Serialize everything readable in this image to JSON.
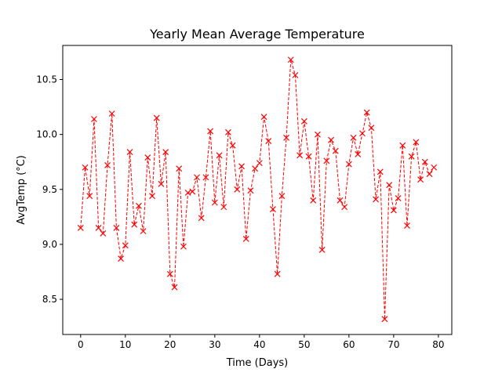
{
  "chart_data": {
    "type": "line",
    "title": "Yearly Mean Average Temperature",
    "xlabel": "Time (Days)",
    "ylabel": "AvgTemp (°C)",
    "xlim": [
      -4,
      83
    ],
    "ylim": [
      8.18,
      10.81
    ],
    "xticks": [
      0,
      10,
      20,
      30,
      40,
      50,
      60,
      70,
      80
    ],
    "yticks": [
      8.5,
      9.0,
      9.5,
      10.0,
      10.5
    ],
    "xtick_labels": [
      "0",
      "10",
      "20",
      "30",
      "40",
      "50",
      "60",
      "70",
      "80"
    ],
    "ytick_labels": [
      "8.5",
      "9.0",
      "9.5",
      "10.0",
      "10.5"
    ],
    "grid": false,
    "legend": "none",
    "series": [
      {
        "color": "#ff0000",
        "line_style": "dashed",
        "marker": "x",
        "x": [
          0,
          1,
          2,
          3,
          4,
          5,
          6,
          7,
          8,
          9,
          10,
          11,
          12,
          13,
          14,
          15,
          16,
          17,
          18,
          19,
          20,
          21,
          22,
          23,
          24,
          25,
          26,
          27,
          28,
          29,
          30,
          31,
          32,
          33,
          34,
          35,
          36,
          37,
          38,
          39,
          40,
          41,
          42,
          43,
          44,
          45,
          46,
          47,
          48,
          49,
          50,
          51,
          52,
          53,
          54,
          55,
          56,
          57,
          58,
          59,
          60,
          61,
          62,
          63,
          64,
          65,
          66,
          67,
          68,
          69,
          70,
          71,
          72,
          73,
          74,
          75,
          76,
          77,
          78,
          79
        ],
        "y": [
          9.15,
          9.7,
          9.44,
          10.14,
          9.15,
          9.1,
          9.72,
          10.19,
          9.15,
          8.87,
          8.99,
          9.84,
          9.18,
          9.35,
          9.12,
          9.79,
          9.44,
          10.15,
          9.55,
          9.84,
          8.73,
          8.61,
          9.69,
          8.98,
          9.47,
          9.48,
          9.61,
          9.24,
          9.61,
          10.03,
          9.38,
          9.81,
          9.34,
          10.02,
          9.9,
          9.5,
          9.71,
          9.05,
          9.49,
          9.69,
          9.74,
          10.16,
          9.94,
          9.32,
          8.73,
          9.44,
          9.97,
          10.68,
          10.54,
          9.81,
          10.12,
          9.8,
          9.4,
          10.0,
          8.95,
          9.76,
          9.95,
          9.85,
          9.4,
          9.34,
          9.73,
          9.97,
          9.82,
          10.01,
          10.2,
          10.06,
          9.41,
          9.66,
          8.32,
          9.54,
          9.31,
          9.42,
          9.9,
          9.17,
          9.8,
          9.93,
          9.59,
          9.75,
          9.64,
          9.7
        ]
      }
    ]
  }
}
